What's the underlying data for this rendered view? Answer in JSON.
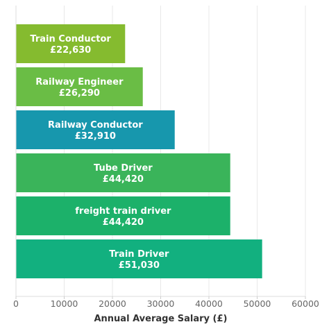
{
  "chart_data": {
    "type": "bar",
    "orientation": "horizontal",
    "categories": [
      "Train Conductor",
      "Railway Engineer",
      "Railway Conductor",
      "Tube Driver",
      "freight train driver",
      "Train Driver"
    ],
    "values": [
      22630,
      26290,
      32910,
      44420,
      44420,
      51030
    ],
    "value_labels": [
      "£22,630",
      "£26,290",
      "£32,910",
      "£44,420",
      "£44,420",
      "£51,030"
    ],
    "colors": [
      "#85bb2f",
      "#6abd45",
      "#1797ad",
      "#3ab45a",
      "#1cb16a",
      "#12b07f"
    ],
    "xlabel": "Annual Average Salary (£)",
    "ylabel": "",
    "title": "",
    "xlim": [
      0,
      60000
    ],
    "xticks": [
      0,
      10000,
      20000,
      30000,
      40000,
      50000,
      60000
    ],
    "xtick_labels": [
      "0",
      "10000",
      "20000",
      "30000",
      "40000",
      "50000",
      "60000"
    ],
    "grid": "vertical",
    "legend": "none"
  }
}
